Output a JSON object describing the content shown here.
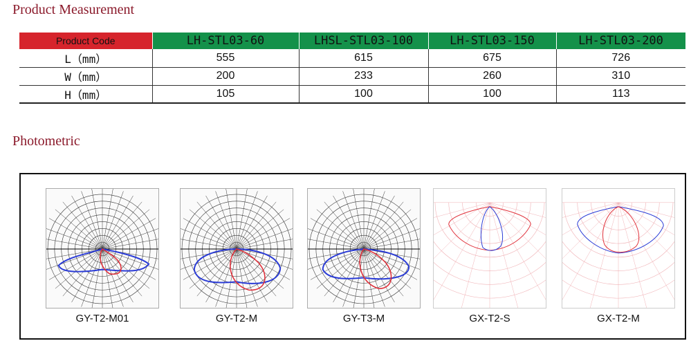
{
  "sections": {
    "measurement_title": "Product Measurement",
    "photometric_title": "Photometric"
  },
  "measurement_table": {
    "header_label": "Product Code",
    "models": [
      "LH-STL03-60",
      "LHSL-STL03-100",
      "LH-STL03-150",
      "LH-STL03-200"
    ],
    "rows": [
      {
        "label": "L（mm）",
        "values": [
          "555",
          "615",
          "675",
          "726"
        ]
      },
      {
        "label": "W（mm）",
        "values": [
          "200",
          "233",
          "260",
          "310"
        ]
      },
      {
        "label": "H（mm）",
        "values": [
          "105",
          "100",
          "100",
          "113"
        ]
      }
    ],
    "colors": {
      "header_code_bg": "#d6242c",
      "header_model_bg": "#14914a"
    }
  },
  "photometric": {
    "diagrams": [
      {
        "caption": "GY-T2-M01"
      },
      {
        "caption": "GY-T2-M"
      },
      {
        "caption": "GY-T3-M"
      },
      {
        "caption": "GX-T2-S"
      },
      {
        "caption": "GX-T2-M"
      }
    ],
    "colors": {
      "curve_blue": "#2a3bd6",
      "curve_red": "#e0303a"
    }
  }
}
